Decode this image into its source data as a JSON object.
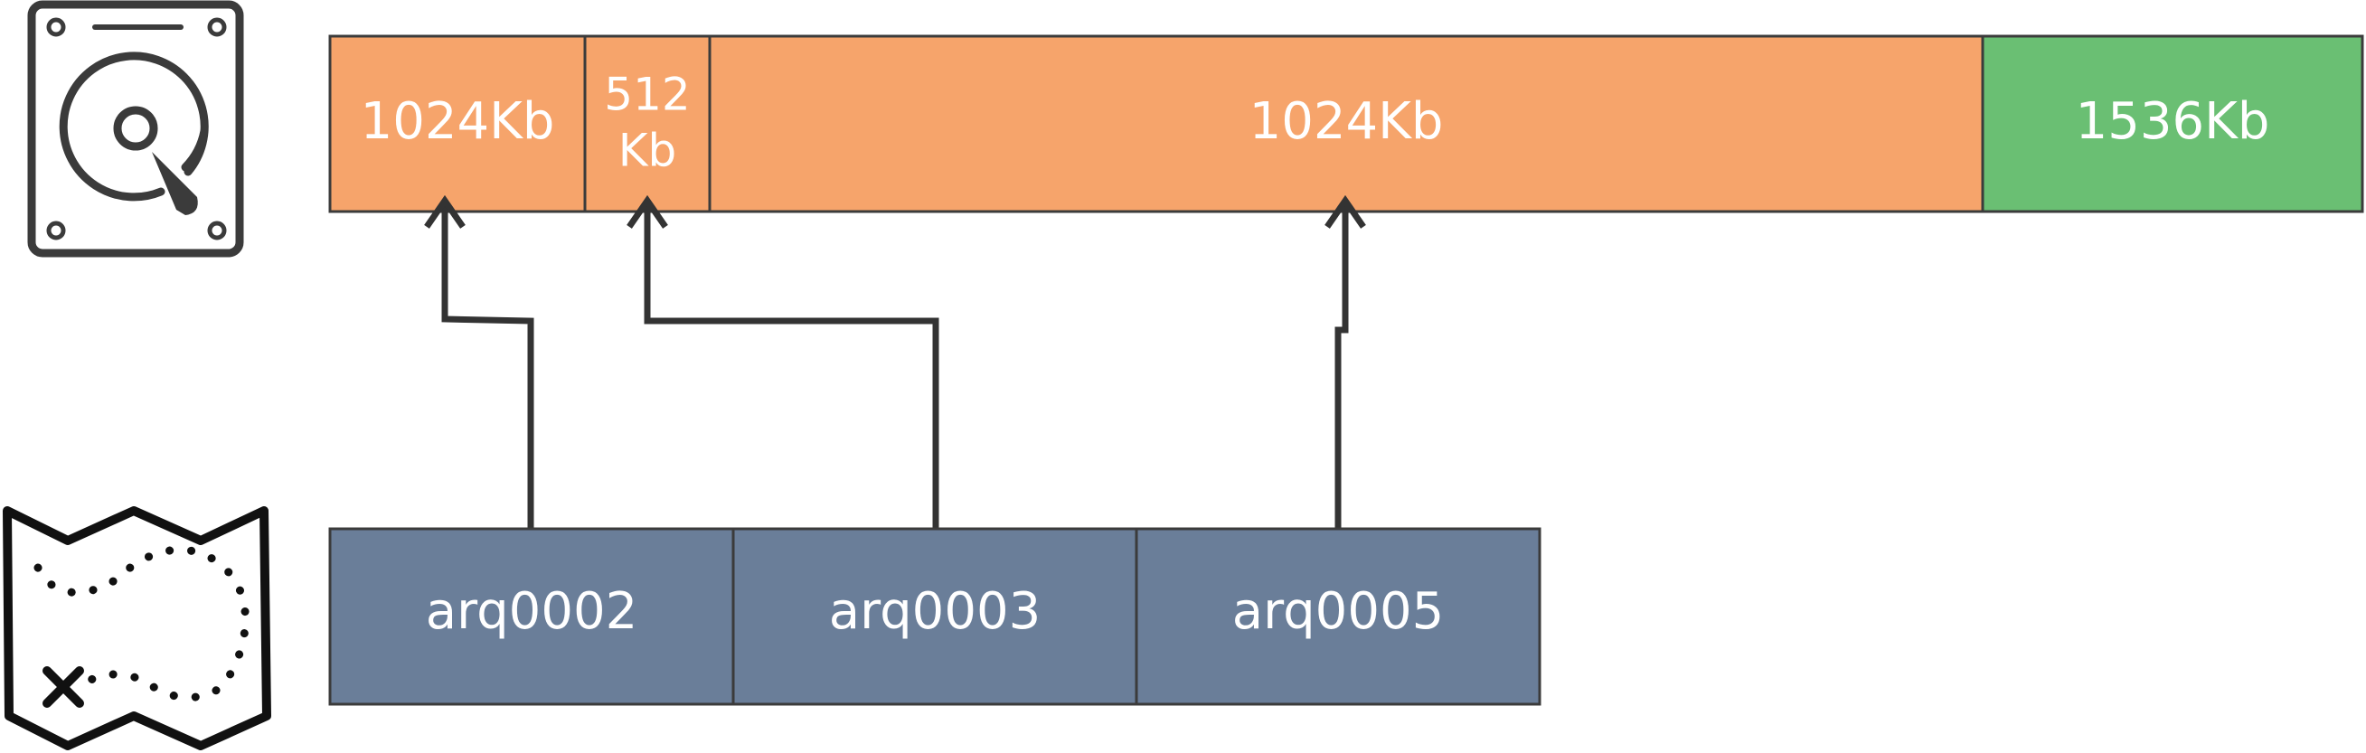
{
  "colors": {
    "used": "#f6a46b",
    "free": "#6abf73",
    "file": "#6a7e99",
    "stroke": "#3b3b3b",
    "arrow": "#333333"
  },
  "icons": {
    "disk": "hard-disk-icon",
    "map": "treasure-map-icon"
  },
  "disk": {
    "blocks": [
      {
        "label": "1024Kb",
        "status": "used"
      },
      {
        "label": "512 Kb",
        "line1": "512",
        "line2": "Kb",
        "status": "used"
      },
      {
        "label": "1024Kb",
        "status": "used"
      },
      {
        "label": "1536Kb",
        "status": "free"
      }
    ]
  },
  "files": [
    {
      "name": "arq0002",
      "block": 0
    },
    {
      "name": "arq0003",
      "block": 1
    },
    {
      "name": "arq0005",
      "block": 2
    }
  ]
}
